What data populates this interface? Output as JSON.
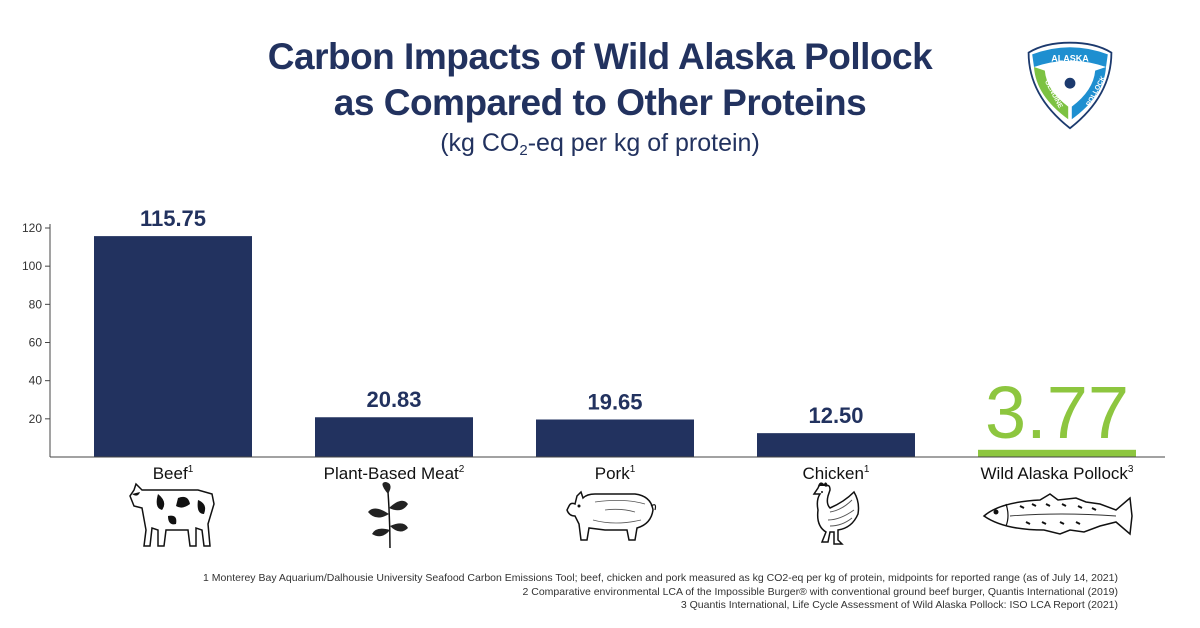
{
  "title_line1": "Carbon Impacts of Wild Alaska Pollock",
  "title_line2": "as Compared to Other Proteins",
  "subtitle_pre": "(kg CO",
  "subtitle_sub": "2",
  "subtitle_post": "-eq per kg of protein)",
  "logo": {
    "top_text": "ALASKA",
    "left_text": "GENUINE",
    "right_text": "POLLOCK",
    "colors": {
      "blue": "#1e8fd0",
      "green": "#7cc242",
      "navy": "#1c3a6e"
    }
  },
  "colors": {
    "bar": "#22325f",
    "highlight": "#8dc63f",
    "text": "#22325f"
  },
  "chart_data": {
    "type": "bar",
    "categories": [
      "Beef",
      "Plant-Based Meat",
      "Pork",
      "Chicken",
      "Wild Alaska Pollock"
    ],
    "footnote_marks": [
      "1",
      "2",
      "1",
      "1",
      "3"
    ],
    "values": [
      115.75,
      20.83,
      19.65,
      12.5,
      3.77
    ],
    "value_labels": [
      "115.75",
      "20.83",
      "19.65",
      "12.50",
      "3.77"
    ],
    "highlight_index": 4,
    "yticks": [
      20,
      40,
      60,
      80,
      100,
      120
    ],
    "ylim": [
      0,
      120
    ],
    "grid": false
  },
  "footnotes": [
    "1 Monterey Bay Aquarium/Dalhousie University Seafood Carbon Emissions Tool; beef, chicken and pork measured as kg CO2-eq per kg of protein, midpoints for reported range (as of July 14, 2021)",
    "2 Comparative environmental LCA of the Impossible Burger® with conventional ground beef burger, Quantis International (2019)",
    "3 Quantis International, Life Cycle Assessment of Wild Alaska Pollock: ISO LCA Report (2021)"
  ]
}
